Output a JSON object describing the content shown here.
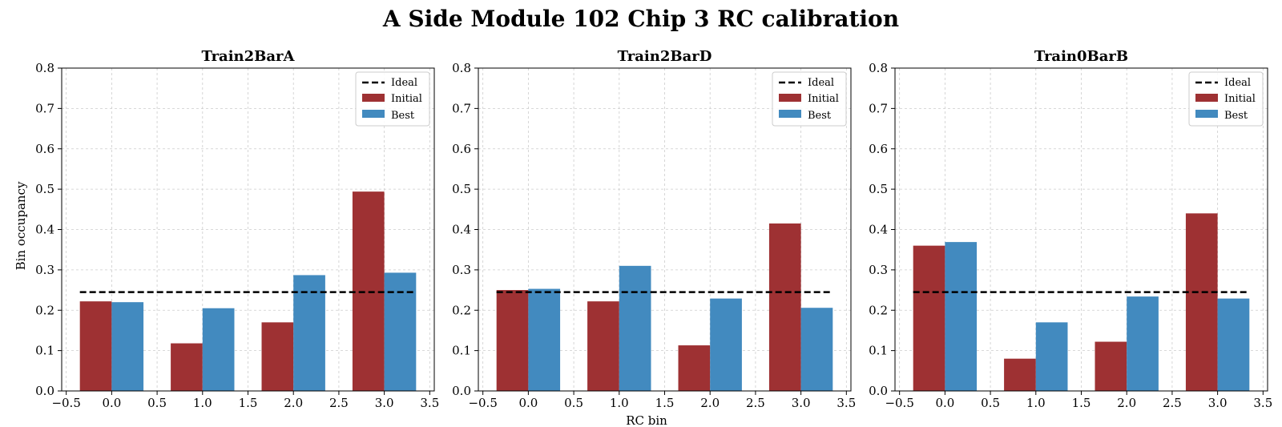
{
  "figure": {
    "title": "A Side Module 102 Chip 3 RC calibration",
    "xlabel": "RC bin",
    "ylabel": "Bin occupancy"
  },
  "colors": {
    "initial": "#9e3133",
    "best": "#428abf",
    "ideal": "#000000",
    "grid": "#cccccc"
  },
  "chart_data": [
    {
      "type": "bar",
      "title": "Train2BarA",
      "xlabel": "",
      "ylabel": "Bin occupancy",
      "x": [
        0,
        1,
        2,
        3
      ],
      "series": [
        {
          "name": "Initial",
          "values": [
            0.222,
            0.118,
            0.17,
            0.494
          ]
        },
        {
          "name": "Best",
          "values": [
            0.22,
            0.205,
            0.287,
            0.293
          ]
        }
      ],
      "ideal": {
        "name": "Ideal",
        "value": 0.245,
        "x_range": [
          -0.35,
          3.35
        ]
      },
      "xlim": [
        -0.55,
        3.55
      ],
      "ylim": [
        0,
        0.8
      ],
      "xticks": [
        "−0.5",
        "0.0",
        "0.5",
        "1.0",
        "1.5",
        "2.0",
        "2.5",
        "3.0",
        "3.5"
      ],
      "yticks": [
        "0.0",
        "0.1",
        "0.2",
        "0.3",
        "0.4",
        "0.5",
        "0.6",
        "0.7",
        "0.8"
      ],
      "grid": true,
      "legend": "top-right"
    },
    {
      "type": "bar",
      "title": "Train2BarD",
      "xlabel": "RC bin",
      "ylabel": "",
      "x": [
        0,
        1,
        2,
        3
      ],
      "series": [
        {
          "name": "Initial",
          "values": [
            0.25,
            0.222,
            0.113,
            0.415
          ]
        },
        {
          "name": "Best",
          "values": [
            0.253,
            0.31,
            0.229,
            0.206
          ]
        }
      ],
      "ideal": {
        "name": "Ideal",
        "value": 0.245,
        "x_range": [
          -0.35,
          3.35
        ]
      },
      "xlim": [
        -0.55,
        3.55
      ],
      "ylim": [
        0,
        0.8
      ],
      "xticks": [
        "−0.5",
        "0.0",
        "0.5",
        "1.0",
        "1.5",
        "2.0",
        "2.5",
        "3.0",
        "3.5"
      ],
      "yticks": [
        "0.0",
        "0.1",
        "0.2",
        "0.3",
        "0.4",
        "0.5",
        "0.6",
        "0.7",
        "0.8"
      ],
      "grid": true,
      "legend": "top-right"
    },
    {
      "type": "bar",
      "title": "Train0BarB",
      "xlabel": "",
      "ylabel": "",
      "x": [
        0,
        1,
        2,
        3
      ],
      "series": [
        {
          "name": "Initial",
          "values": [
            0.36,
            0.08,
            0.122,
            0.44
          ]
        },
        {
          "name": "Best",
          "values": [
            0.369,
            0.17,
            0.234,
            0.229
          ]
        }
      ],
      "ideal": {
        "name": "Ideal",
        "value": 0.245,
        "x_range": [
          -0.35,
          3.35
        ]
      },
      "xlim": [
        -0.55,
        3.55
      ],
      "ylim": [
        0,
        0.8
      ],
      "xticks": [
        "−0.5",
        "0.0",
        "0.5",
        "1.0",
        "1.5",
        "2.0",
        "2.5",
        "3.0",
        "3.5"
      ],
      "yticks": [
        "0.0",
        "0.1",
        "0.2",
        "0.3",
        "0.4",
        "0.5",
        "0.6",
        "0.7",
        "0.8"
      ],
      "grid": true,
      "legend": "top-right"
    }
  ]
}
